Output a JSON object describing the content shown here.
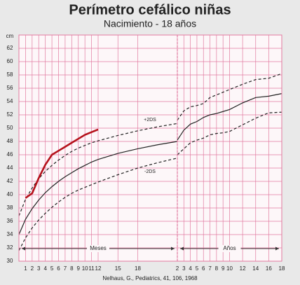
{
  "chart_data": [
    {
      "type": "line",
      "title": "Perímetro cefálico niñas",
      "subtitle": "Nacimiento - 18 años",
      "y_label": "cm",
      "x_label": "Meses",
      "source": "Nelhaus, G., Pediatrics, 41, 106, 1968",
      "x": [
        0,
        1,
        2,
        3,
        4,
        5,
        6,
        7,
        8,
        9,
        10,
        11,
        12,
        15,
        18,
        21,
        24
      ],
      "xlim": [
        0,
        24
      ],
      "xticks": [
        1,
        2,
        3,
        4,
        5,
        6,
        7,
        8,
        9,
        10,
        11,
        12,
        15,
        18
      ],
      "ylim": [
        30,
        64
      ],
      "yticks": [
        30,
        32,
        34,
        36,
        38,
        40,
        42,
        44,
        46,
        48,
        50,
        52,
        54,
        56,
        58,
        60,
        62
      ],
      "grid": true,
      "series": [
        {
          "name": "+2DS",
          "color": "#222222",
          "dash": true,
          "values": [
            36.8,
            39.3,
            41,
            42.4,
            43.5,
            44.4,
            45.2,
            45.9,
            46.5,
            47,
            47.4,
            47.8,
            48.1,
            48.9,
            49.6,
            50.2,
            50.7
          ]
        },
        {
          "color": "#222222",
          "dash": false,
          "values": [
            34,
            36.3,
            37.9,
            39.2,
            40.3,
            41.2,
            42,
            42.7,
            43.3,
            43.9,
            44.4,
            44.9,
            45.3,
            46.2,
            46.9,
            47.5,
            48
          ]
        },
        {
          "name": "-2DS",
          "color": "#222222",
          "dash": true,
          "values": [
            31.6,
            33.5,
            35,
            36.2,
            37.2,
            38.1,
            38.9,
            39.6,
            40.2,
            40.7,
            41.1,
            41.5,
            41.9,
            43,
            44,
            44.8,
            45.5
          ]
        },
        {
          "color": "#b5121b",
          "dash": false,
          "values": [
            null,
            39.5,
            40.2,
            42.5,
            44.5,
            46,
            46.6,
            47.2,
            47.8,
            48.4,
            49,
            49.4,
            49.8,
            null,
            null,
            null,
            null
          ]
        }
      ]
    },
    {
      "type": "line",
      "x_label": "Años",
      "x": [
        2,
        3,
        4,
        5,
        6,
        7,
        8,
        9,
        10,
        12,
        14,
        16,
        18
      ],
      "xlim": [
        2,
        18
      ],
      "xticks": [
        2,
        3,
        4,
        5,
        6,
        7,
        8,
        9,
        10,
        12,
        14,
        16,
        18
      ],
      "ylim": [
        30,
        64
      ],
      "grid": true,
      "series": [
        {
          "color": "#222222",
          "dash": true,
          "values": [
            51.2,
            52.6,
            53.2,
            53.4,
            53.7,
            54.6,
            55,
            55.4,
            55.8,
            56.6,
            57.3,
            57.5,
            58.2
          ]
        },
        {
          "color": "#222222",
          "dash": false,
          "values": [
            48.2,
            49.7,
            50.6,
            51,
            51.6,
            52,
            52.2,
            52.5,
            52.8,
            53.8,
            54.6,
            54.8,
            55.2
          ]
        },
        {
          "color": "#222222",
          "dash": true,
          "values": [
            46,
            46.9,
            47.8,
            48.2,
            48.5,
            49,
            49.2,
            49.3,
            49.5,
            50.5,
            51.5,
            52.3,
            52.4
          ]
        }
      ]
    }
  ]
}
